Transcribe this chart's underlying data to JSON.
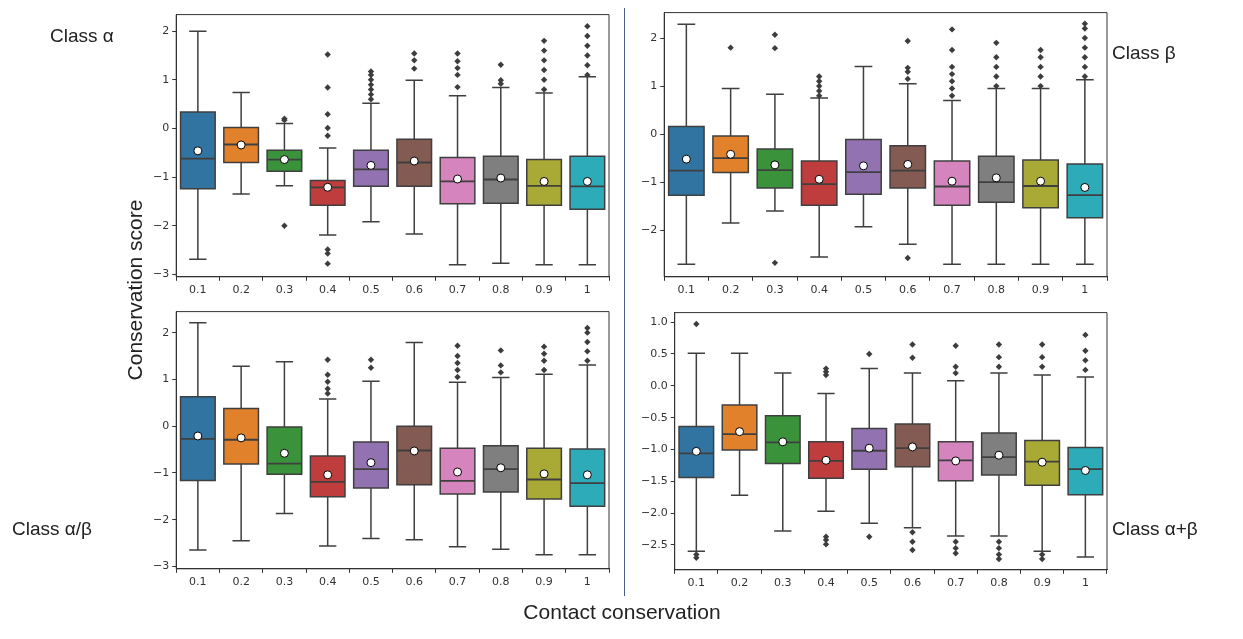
{
  "chart_data": [
    {
      "type": "box",
      "title": "Class α",
      "ylabel": "Conservation score",
      "xlabel": "Contact conservation",
      "categories": [
        "0.1",
        "0.2",
        "0.3",
        "0.4",
        "0.5",
        "0.6",
        "0.7",
        "0.8",
        "0.9",
        "1"
      ],
      "colors": [
        "#3274a1",
        "#e1812c",
        "#3a923a",
        "#c03d3e",
        "#9372b2",
        "#845b53",
        "#d684bd",
        "#7f7f7f",
        "#a9aa35",
        "#2eabb8"
      ],
      "ylim": [
        -3.05,
        2.34
      ],
      "yticks": [
        {
          "value": -3,
          "label": "−3"
        },
        {
          "value": -2,
          "label": "−2"
        },
        {
          "value": -1,
          "label": "−1"
        },
        0,
        1,
        2
      ],
      "boxes": [
        {
          "low": -2.69,
          "q1": -1.24,
          "median": -0.62,
          "q3": 0.34,
          "high": 2.0,
          "mean": -0.46
        },
        {
          "low": -1.35,
          "q1": -0.7,
          "median": -0.33,
          "q3": 0.02,
          "high": 0.74,
          "mean": -0.34
        },
        {
          "low": -1.18,
          "q1": -0.88,
          "median": -0.64,
          "q3": -0.45,
          "high": 0.1,
          "mean": -0.64,
          "outliers": [
            0.17,
            0.2,
            -2.0
          ]
        },
        {
          "low": -2.19,
          "q1": -1.58,
          "median": -1.21,
          "q3": -1.07,
          "high": -0.4,
          "mean": -1.21,
          "outliers": [
            1.52,
            0.84,
            0.29,
            0.01,
            -0.15,
            -2.49,
            -2.57,
            -2.78
          ]
        },
        {
          "low": -1.92,
          "q1": -1.19,
          "median": -0.84,
          "q3": -0.45,
          "high": 0.52,
          "mean": -0.76,
          "outliers": [
            0.6,
            0.7,
            0.8,
            0.9,
            1.0,
            1.1,
            1.17
          ]
        },
        {
          "low": -2.17,
          "q1": -1.19,
          "median": -0.7,
          "q3": -0.22,
          "high": 0.99,
          "mean": -0.67,
          "outliers": [
            1.23,
            1.4,
            1.54
          ]
        },
        {
          "low": -2.8,
          "q1": -1.55,
          "median": -1.09,
          "q3": -0.6,
          "high": 0.67,
          "mean": -1.04,
          "outliers": [
            0.85,
            1.1,
            1.24,
            1.38,
            1.54
          ]
        },
        {
          "low": -2.77,
          "q1": -1.54,
          "median": -1.05,
          "q3": -0.57,
          "high": 0.84,
          "mean": -1.02,
          "outliers": [
            0.92,
            0.99,
            1.31
          ]
        },
        {
          "low": -2.8,
          "q1": -1.58,
          "median": -1.18,
          "q3": -0.64,
          "high": 0.73,
          "mean": -1.09,
          "outliers": [
            0.8,
            1.0,
            1.2,
            1.4,
            1.6,
            1.8
          ]
        },
        {
          "low": -2.8,
          "q1": -1.66,
          "median": -1.19,
          "q3": -0.57,
          "high": 1.06,
          "mean": -1.09,
          "outliers": [
            1.1,
            1.3,
            1.5,
            1.7,
            1.9,
            2.1
          ]
        }
      ]
    },
    {
      "type": "box",
      "title": "Class β",
      "categories": [
        "0.1",
        "0.2",
        "0.3",
        "0.4",
        "0.5",
        "0.6",
        "0.7",
        "0.8",
        "0.9",
        "1"
      ],
      "colors": [
        "#3274a1",
        "#e1812c",
        "#3a923a",
        "#c03d3e",
        "#9372b2",
        "#845b53",
        "#d684bd",
        "#7f7f7f",
        "#a9aa35",
        "#2eabb8"
      ],
      "ylim": [
        -2.97,
        2.53
      ],
      "yticks": [
        {
          "value": -2,
          "label": "−2"
        },
        {
          "value": -1,
          "label": "−1"
        },
        0,
        1,
        2
      ],
      "boxes": [
        {
          "low": -2.71,
          "q1": -1.27,
          "median": -0.76,
          "q3": 0.16,
          "high": 2.29,
          "mean": -0.52
        },
        {
          "low": -1.85,
          "q1": -0.8,
          "median": -0.5,
          "q3": -0.04,
          "high": 0.95,
          "mean": -0.42,
          "outliers": [
            1.8
          ]
        },
        {
          "low": -1.6,
          "q1": -1.12,
          "median": -0.75,
          "q3": -0.31,
          "high": 0.83,
          "mean": -0.64,
          "outliers": [
            2.07,
            1.79,
            -2.68
          ]
        },
        {
          "low": -2.56,
          "q1": -1.48,
          "median": -1.04,
          "q3": -0.56,
          "high": 0.75,
          "mean": -0.94,
          "outliers": [
            0.8,
            0.9,
            1.0,
            1.1,
            1.2
          ]
        },
        {
          "low": -1.93,
          "q1": -1.25,
          "median": -0.79,
          "q3": -0.11,
          "high": 1.41,
          "mean": -0.66
        },
        {
          "low": -2.29,
          "q1": -1.12,
          "median": -0.76,
          "q3": -0.24,
          "high": 1.05,
          "mean": -0.63,
          "outliers": [
            1.15,
            1.3,
            1.38,
            1.94,
            -2.58
          ]
        },
        {
          "low": -2.71,
          "q1": -1.48,
          "median": -1.09,
          "q3": -0.56,
          "high": 0.7,
          "mean": -0.98,
          "outliers": [
            0.8,
            0.95,
            1.1,
            1.25,
            1.4,
            1.75,
            2.18
          ]
        },
        {
          "low": -2.71,
          "q1": -1.42,
          "median": -1.0,
          "q3": -0.46,
          "high": 0.95,
          "mean": -0.91,
          "outliers": [
            1.0,
            1.2,
            1.4,
            1.6,
            1.9
          ]
        },
        {
          "low": -2.71,
          "q1": -1.53,
          "median": -1.08,
          "q3": -0.54,
          "high": 0.95,
          "mean": -0.98,
          "outliers": [
            1.0,
            1.2,
            1.4,
            1.6,
            1.75
          ]
        },
        {
          "low": -2.71,
          "q1": -1.74,
          "median": -1.27,
          "q3": -0.62,
          "high": 1.13,
          "mean": -1.11,
          "outliers": [
            1.2,
            1.4,
            1.6,
            1.8,
            2.0,
            2.2,
            2.3
          ]
        }
      ]
    },
    {
      "type": "box",
      "title": "Class α/β",
      "categories": [
        "0.1",
        "0.2",
        "0.3",
        "0.4",
        "0.5",
        "0.6",
        "0.7",
        "0.8",
        "0.9",
        "1"
      ],
      "colors": [
        "#3274a1",
        "#e1812c",
        "#3a923a",
        "#c03d3e",
        "#9372b2",
        "#845b53",
        "#d684bd",
        "#7f7f7f",
        "#a9aa35",
        "#2eabb8"
      ],
      "ylim": [
        -3.05,
        2.45
      ],
      "yticks": [
        {
          "value": -3,
          "label": "−3"
        },
        {
          "value": -2,
          "label": "−2"
        },
        {
          "value": -1,
          "label": "−1"
        },
        0,
        1,
        2
      ],
      "boxes": [
        {
          "low": -2.65,
          "q1": -1.16,
          "median": -0.27,
          "q3": 0.63,
          "high": 2.21,
          "mean": -0.21
        },
        {
          "low": -2.45,
          "q1": -0.81,
          "median": -0.29,
          "q3": 0.38,
          "high": 1.28,
          "mean": -0.25
        },
        {
          "low": -1.87,
          "q1": -1.03,
          "median": -0.8,
          "q3": -0.02,
          "high": 1.38,
          "mean": -0.58
        },
        {
          "low": -2.56,
          "q1": -1.51,
          "median": -1.19,
          "q3": -0.64,
          "high": 0.58,
          "mean": -1.04,
          "outliers": [
            0.7,
            0.8,
            0.95,
            1.1,
            1.42
          ]
        },
        {
          "low": -2.4,
          "q1": -1.32,
          "median": -0.92,
          "q3": -0.34,
          "high": 0.96,
          "mean": -0.78,
          "outliers": [
            1.25,
            1.42
          ]
        },
        {
          "low": -2.43,
          "q1": -1.25,
          "median": -0.52,
          "q3": 0.0,
          "high": 1.79,
          "mean": -0.53
        },
        {
          "low": -2.58,
          "q1": -1.45,
          "median": -1.17,
          "q3": -0.47,
          "high": 0.94,
          "mean": -0.98,
          "outliers": [
            1.05,
            1.2,
            1.35,
            1.5,
            1.72
          ]
        },
        {
          "low": -2.63,
          "q1": -1.41,
          "median": -0.92,
          "q3": -0.42,
          "high": 1.04,
          "mean": -0.89,
          "outliers": [
            1.15,
            1.3,
            1.62
          ]
        },
        {
          "low": -2.75,
          "q1": -1.56,
          "median": -1.14,
          "q3": -0.47,
          "high": 1.11,
          "mean": -1.02,
          "outliers": [
            1.2,
            1.4,
            1.55,
            1.7
          ]
        },
        {
          "low": -2.75,
          "q1": -1.71,
          "median": -1.22,
          "q3": -0.49,
          "high": 1.31,
          "mean": -1.04,
          "outliers": [
            1.4,
            1.6,
            1.8,
            2.0,
            2.1
          ]
        }
      ]
    },
    {
      "type": "box",
      "title": "Class α+β",
      "categories": [
        "0.1",
        "0.2",
        "0.3",
        "0.4",
        "0.5",
        "0.6",
        "0.7",
        "0.8",
        "0.9",
        "1"
      ],
      "colors": [
        "#3274a1",
        "#e1812c",
        "#3a923a",
        "#c03d3e",
        "#9372b2",
        "#845b53",
        "#d684bd",
        "#7f7f7f",
        "#a9aa35",
        "#2eabb8"
      ],
      "ylim": [
        -2.89,
        1.15
      ],
      "yticks": [
        {
          "value": -2.5,
          "label": "−2.5"
        },
        {
          "value": -2,
          "label": "−2.0"
        },
        {
          "value": -1.5,
          "label": "−1.5"
        },
        {
          "value": -1,
          "label": "−1.0"
        },
        {
          "value": -0.5,
          "label": "−0.5"
        },
        {
          "value": 0,
          "label": "0.0"
        },
        0.5,
        {
          "value": 1,
          "label": "1.0"
        }
      ],
      "boxes": [
        {
          "low": -2.6,
          "q1": -1.44,
          "median": -1.06,
          "q3": -0.64,
          "high": 0.51,
          "mean": -1.03,
          "outliers": [
            0.97,
            -2.65,
            -2.7
          ]
        },
        {
          "low": -1.72,
          "q1": -1.01,
          "median": -0.76,
          "q3": -0.3,
          "high": 0.51,
          "mean": -0.72
        },
        {
          "low": -2.28,
          "q1": -1.22,
          "median": -0.89,
          "q3": -0.47,
          "high": 0.2,
          "mean": -0.88
        },
        {
          "low": -1.97,
          "q1": -1.45,
          "median": -1.18,
          "q3": -0.88,
          "high": -0.12,
          "mean": -1.17,
          "outliers": [
            0.17,
            0.22,
            0.27,
            -2.37,
            -2.42,
            -2.49
          ]
        },
        {
          "low": -2.16,
          "q1": -1.31,
          "median": -1.02,
          "q3": -0.67,
          "high": 0.27,
          "mean": -0.98,
          "outliers": [
            0.5,
            -2.37
          ]
        },
        {
          "low": -2.23,
          "q1": -1.27,
          "median": -0.98,
          "q3": -0.6,
          "high": 0.2,
          "mean": -0.96,
          "outliers": [
            0.44,
            0.65,
            -2.3,
            -2.45,
            -2.58
          ]
        },
        {
          "low": -2.36,
          "q1": -1.49,
          "median": -1.17,
          "q3": -0.88,
          "high": 0.08,
          "mean": -1.18,
          "outliers": [
            0.2,
            0.3,
            0.63,
            -2.45,
            -2.55,
            -2.63
          ]
        },
        {
          "low": -2.36,
          "q1": -1.4,
          "median": -1.12,
          "q3": -0.74,
          "high": 0.2,
          "mean": -1.09,
          "outliers": [
            0.3,
            0.45,
            0.65,
            -2.45,
            -2.55,
            -2.65,
            -2.72
          ]
        },
        {
          "low": -2.6,
          "q1": -1.56,
          "median": -1.19,
          "q3": -0.86,
          "high": 0.17,
          "mean": -1.2,
          "outliers": [
            0.3,
            0.45,
            0.65,
            -2.65,
            -2.72
          ]
        },
        {
          "low": -2.69,
          "q1": -1.71,
          "median": -1.31,
          "q3": -0.97,
          "high": 0.14,
          "mean": -1.33,
          "outliers": [
            0.25,
            0.4,
            0.55,
            0.8
          ]
        }
      ]
    }
  ]
}
